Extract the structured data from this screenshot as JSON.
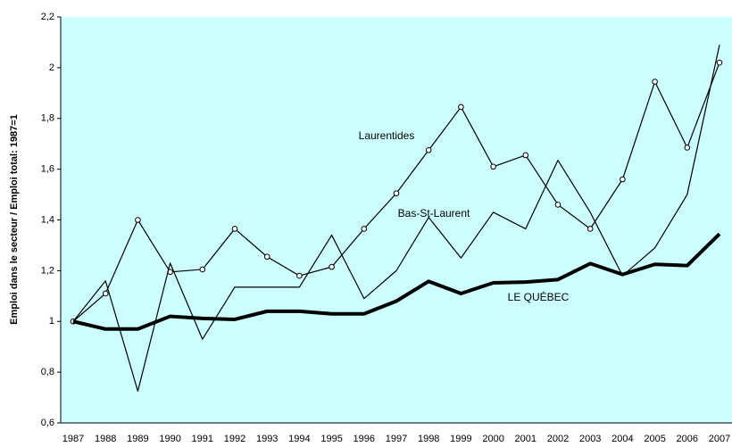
{
  "chart_data": {
    "type": "line",
    "y_label": "Emploi dans le secteur / Emploi total: 1987=1",
    "categories": [
      "1987",
      "1988",
      "1989",
      "1990",
      "1991",
      "1992",
      "1993",
      "1994",
      "1995",
      "1996",
      "1997",
      "1998",
      "1999",
      "2000",
      "2001",
      "2002",
      "2003",
      "2004",
      "2005",
      "2006",
      "2007"
    ],
    "series": [
      {
        "name": "Laurentides",
        "color": "#000000",
        "marker": "circle",
        "values": [
          1.0,
          1.11,
          1.4,
          1.195,
          1.205,
          1.365,
          1.255,
          1.18,
          1.215,
          1.365,
          1.505,
          1.675,
          1.845,
          1.61,
          1.655,
          1.46,
          1.365,
          1.56,
          1.945,
          1.685,
          2.02
        ]
      },
      {
        "name": "Bas-St-Laurent",
        "color": "#000000",
        "values": [
          1.0,
          1.16,
          0.725,
          1.23,
          0.93,
          1.135,
          1.135,
          1.135,
          1.34,
          1.09,
          1.2,
          1.41,
          1.25,
          1.43,
          1.365,
          1.635,
          1.43,
          1.18,
          1.29,
          1.5,
          2.09
        ]
      },
      {
        "name": "LE QUÉBEC",
        "color": "#000000",
        "values": [
          1.0,
          0.97,
          0.97,
          1.02,
          1.012,
          1.008,
          1.04,
          1.04,
          1.03,
          1.03,
          1.08,
          1.158,
          1.11,
          1.152,
          1.155,
          1.165,
          1.228,
          1.185,
          1.225,
          1.22,
          1.345
        ]
      }
    ],
    "ylim": [
      0.6,
      2.2
    ],
    "yticks": [
      {
        "value": 0.6,
        "label": "0,6"
      },
      {
        "value": 0.8,
        "label": "0,8"
      },
      1,
      {
        "value": 1.2,
        "label": "1,2"
      },
      {
        "value": 1.4,
        "label": "1,4"
      },
      {
        "value": 1.6,
        "label": "1,6"
      },
      {
        "value": 1.8,
        "label": "1,8"
      },
      2,
      {
        "value": 2.2,
        "label": "2,2"
      }
    ],
    "background": "#ccffff"
  }
}
